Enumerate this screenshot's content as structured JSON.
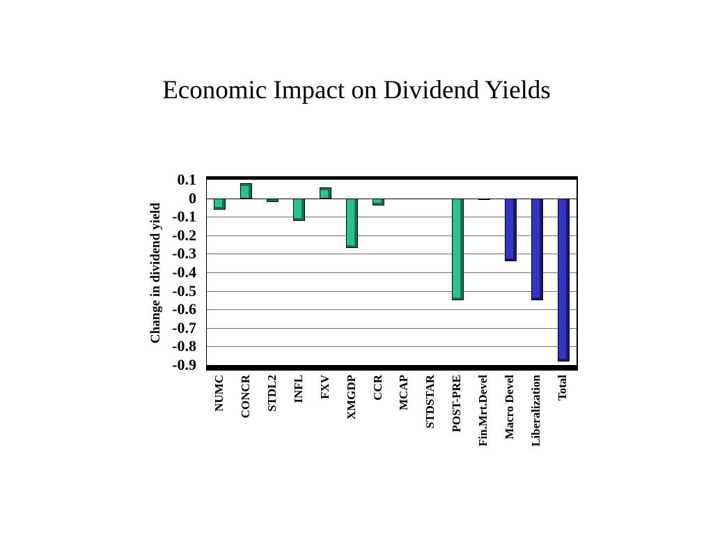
{
  "slide": {
    "title": "Economic Impact on Dividend Yields"
  },
  "chart_data": {
    "type": "bar",
    "title": "Economic Impact on Dividend Yields",
    "xlabel": "",
    "ylabel": "Change in dividend yield",
    "ylim": [
      -0.9,
      0.1
    ],
    "ytick_step": 0.1,
    "ytick_labels": [
      "0.1",
      "0",
      "-0.1",
      "-0.2",
      "-0.3",
      "-0.4",
      "-0.5",
      "-0.6",
      "-0.7",
      "-0.8",
      "-0.9"
    ],
    "grid": true,
    "legend": false,
    "categories": [
      "NUMC",
      "CONCR",
      "STDL2",
      "INFL",
      "FXV",
      "XMGDP",
      "CCR",
      "MCAP",
      "STDSTAR",
      "POST-PRE",
      "Fin.Mrt.Devel",
      "Macro Devel",
      "Liberalization",
      "Total"
    ],
    "values": [
      -0.06,
      0.08,
      -0.02,
      -0.12,
      0.06,
      -0.27,
      -0.04,
      0,
      0,
      -0.55,
      -0.01,
      -0.34,
      -0.55,
      -0.88
    ],
    "bar_color_keys": [
      "teal",
      "teal",
      "teal",
      "teal",
      "teal",
      "teal",
      "teal",
      "teal",
      "teal",
      "teal",
      "blue",
      "blue",
      "blue",
      "blue"
    ],
    "palette": {
      "teal": "#2EC18F",
      "teal_dark": "#12745A",
      "blue": "#3535C4",
      "blue_dark": "#1A1A72"
    }
  }
}
